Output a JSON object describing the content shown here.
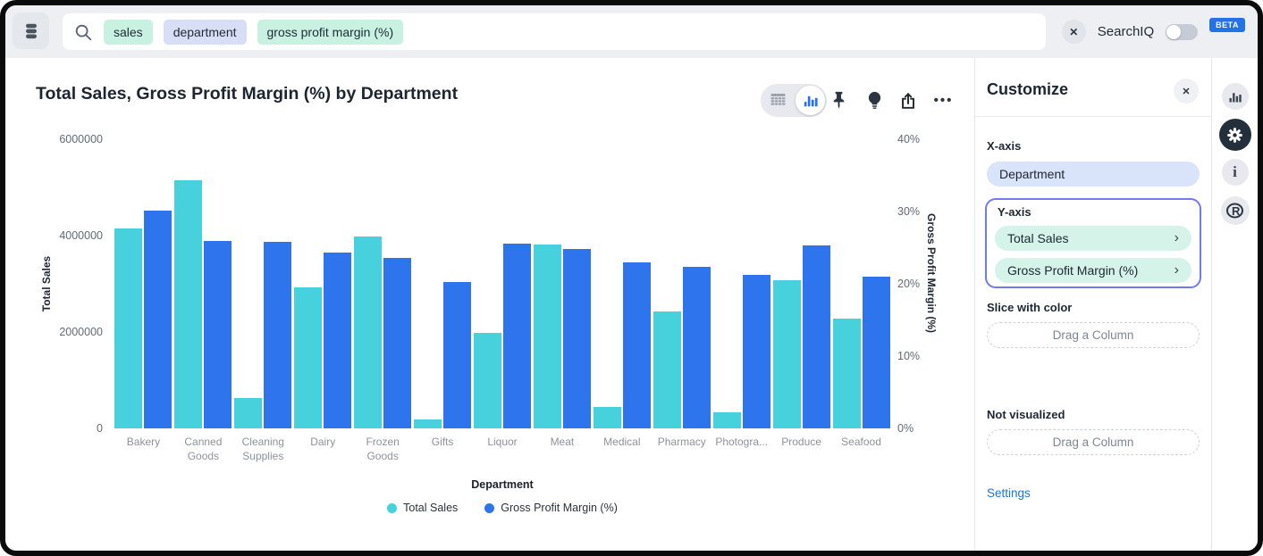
{
  "topbar": {
    "search": {
      "tokens": [
        {
          "text": "sales",
          "color": "mint"
        },
        {
          "text": "department",
          "color": "lavender"
        },
        {
          "text": "gross profit margin (%)",
          "color": "mint"
        }
      ]
    },
    "searchiq_label": "SearchIQ",
    "beta_badge": "BETA",
    "searchiq_toggle": "off"
  },
  "chart_header": {
    "title": "Total Sales, Gross Profit Margin (%) by Department",
    "toolbar_icons": [
      "table-view",
      "chart-view",
      "pin",
      "insights-bulb",
      "share",
      "more-options"
    ],
    "selected_view": "chart-view"
  },
  "chart_data": {
    "type": "bar",
    "title": "Total Sales, Gross Profit Margin (%) by Department",
    "categories": [
      "Bakery",
      "Canned Goods",
      "Cleaning Supplies",
      "Dairy",
      "Frozen Goods",
      "Gifts",
      "Liquor",
      "Meat",
      "Medical",
      "Pharmacy",
      "Photogra...",
      "Produce",
      "Seafood"
    ],
    "series": [
      {
        "name": "Total Sales",
        "axis": "left",
        "color": "#46D1DC",
        "values": [
          4140000,
          5150000,
          630000,
          2920000,
          3980000,
          190000,
          1990000,
          3810000,
          450000,
          2420000,
          340000,
          3070000,
          2270000
        ]
      },
      {
        "name": "Gross Profit Margin (%)",
        "axis": "right",
        "color": "#2E75ED",
        "values": [
          30.1,
          25.9,
          25.8,
          24.3,
          23.6,
          20.3,
          25.5,
          24.8,
          23.0,
          22.3,
          21.2,
          25.3,
          21.0
        ]
      }
    ],
    "left_axis": {
      "title": "Total Sales",
      "tick_labels": [
        "0",
        "2000000",
        "4000000",
        "6000000"
      ],
      "tick_values": [
        0,
        2000000,
        4000000,
        6000000
      ],
      "max": 6000000
    },
    "right_axis": {
      "title": "Gross Profit Margin (%)",
      "tick_labels": [
        "0%",
        "10%",
        "20%",
        "30%",
        "40%"
      ],
      "tick_values": [
        0,
        10,
        20,
        30,
        40
      ],
      "max": 40
    },
    "xlabel": "Department",
    "legend_position": "bottom",
    "grid": false
  },
  "customize_panel": {
    "title": "Customize",
    "x_axis": {
      "label": "X-axis",
      "value": "Department"
    },
    "y_axis": {
      "label": "Y-axis",
      "items": [
        "Total Sales",
        "Gross Profit Margin (%)"
      ],
      "highlighted": true
    },
    "slice_with_color": {
      "label": "Slice with color",
      "placeholder": "Drag a Column"
    },
    "not_visualized": {
      "label": "Not visualized",
      "placeholder": "Drag a Column"
    },
    "settings_link": "Settings"
  },
  "right_toolbar": {
    "icons": [
      "chart-options",
      "settings-gear",
      "info",
      "r-analysis"
    ],
    "active": "settings-gear"
  },
  "icons": {
    "close": "✕",
    "more": "•••",
    "chevron": "›",
    "info": "i",
    "r_logo": "R"
  },
  "colors": {
    "bar_teal": "#46D1DC",
    "bar_blue": "#2E75ED",
    "accent_blue": "#2472EA",
    "token_mint": "#C9F1E2",
    "token_lavender": "#D9DEF7",
    "pill_lavender": "#D9E3FA",
    "pill_mint": "#D5F3E9",
    "highlight_border": "#6E7BF2"
  }
}
